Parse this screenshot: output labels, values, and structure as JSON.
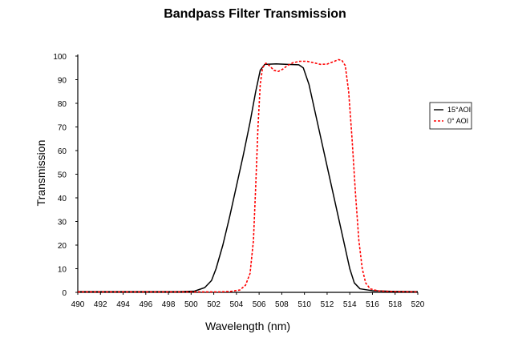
{
  "chart_data": {
    "type": "line",
    "title": "Bandpass Filter Transmission",
    "xlabel": "Wavelength (nm)",
    "ylabel": "Transmission",
    "xlim": [
      490,
      520
    ],
    "ylim": [
      0,
      100
    ],
    "x_ticks": [
      490,
      492,
      494,
      496,
      498,
      500,
      502,
      504,
      506,
      508,
      510,
      512,
      514,
      516,
      518,
      520
    ],
    "y_ticks": [
      0,
      10,
      20,
      30,
      40,
      50,
      60,
      70,
      80,
      90,
      100
    ],
    "grid": false,
    "legend_position": "right",
    "series": [
      {
        "name": "15°AOI",
        "color": "#000000",
        "style": "solid",
        "points": [
          [
            490,
            0.3
          ],
          [
            499,
            0.3
          ],
          [
            500.3,
            0.5
          ],
          [
            501.2,
            2
          ],
          [
            501.8,
            5
          ],
          [
            502.2,
            10
          ],
          [
            502.8,
            20
          ],
          [
            503.4,
            32
          ],
          [
            504,
            45
          ],
          [
            504.6,
            58
          ],
          [
            505.2,
            72
          ],
          [
            505.7,
            85
          ],
          [
            506.1,
            94
          ],
          [
            506.5,
            96.5
          ],
          [
            507.5,
            96.7
          ],
          [
            508.5,
            96.5
          ],
          [
            509.5,
            96.3
          ],
          [
            509.9,
            95
          ],
          [
            510.4,
            88
          ],
          [
            511,
            75
          ],
          [
            511.6,
            62
          ],
          [
            512.2,
            49
          ],
          [
            512.8,
            36
          ],
          [
            513.4,
            23
          ],
          [
            514,
            10
          ],
          [
            514.4,
            4
          ],
          [
            514.9,
            1.5
          ],
          [
            516,
            0.7
          ],
          [
            518,
            0.4
          ],
          [
            520,
            0.3
          ]
        ]
      },
      {
        "name": "0° AOI",
        "color": "#ff0000",
        "style": "dashed",
        "points": [
          [
            490,
            0.2
          ],
          [
            502.5,
            0.2
          ],
          [
            503.5,
            0.4
          ],
          [
            504.3,
            1
          ],
          [
            504.8,
            3
          ],
          [
            505.2,
            8
          ],
          [
            505.5,
            22
          ],
          [
            505.7,
            45
          ],
          [
            505.9,
            70
          ],
          [
            506.1,
            88
          ],
          [
            506.3,
            95
          ],
          [
            506.6,
            97
          ],
          [
            506.9,
            96
          ],
          [
            507.3,
            94
          ],
          [
            507.7,
            93.5
          ],
          [
            508.1,
            94.5
          ],
          [
            508.5,
            96
          ],
          [
            509,
            97.2
          ],
          [
            509.6,
            97.8
          ],
          [
            510.2,
            97.8
          ],
          [
            510.8,
            97.2
          ],
          [
            511.4,
            96.5
          ],
          [
            512,
            96.6
          ],
          [
            512.5,
            97.5
          ],
          [
            513,
            98.5
          ],
          [
            513.3,
            98.2
          ],
          [
            513.6,
            96
          ],
          [
            513.9,
            85
          ],
          [
            514.2,
            65
          ],
          [
            514.5,
            42
          ],
          [
            514.8,
            22
          ],
          [
            515.1,
            10
          ],
          [
            515.4,
            4
          ],
          [
            515.8,
            1.5
          ],
          [
            516.5,
            0.6
          ],
          [
            518,
            0.3
          ],
          [
            520,
            0.2
          ]
        ]
      }
    ]
  }
}
